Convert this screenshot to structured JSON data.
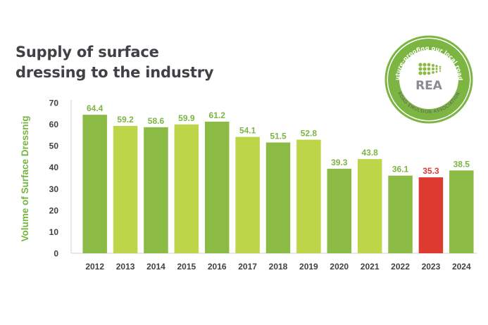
{
  "title_lines": [
    "Supply of surface",
    "dressing to the industry"
  ],
  "logo": {
    "text": "REA",
    "arc_top": "Future-proofing our local roads",
    "arc_bottom": "ROAD EMULSION ASSOCIATION",
    "colors": {
      "ring": "#7db543",
      "fill": "#7db543",
      "text_gray": "#8a8c8f"
    }
  },
  "colors": {
    "dark_green": "#8bbb44",
    "light_green": "#bdd548",
    "red": "#dd3b30",
    "ylabel": "#74b63f",
    "value_green": "#7db543",
    "value_red": "#dd3b30",
    "axis_text": "#404145"
  },
  "chart_data": {
    "type": "bar",
    "title": "Supply of surface dressing to the industry",
    "ylabel": "Volume of Surface Dressnig",
    "xlabel": "",
    "ylim": [
      0,
      70
    ],
    "yticks": [
      0,
      10,
      20,
      30,
      40,
      50,
      60,
      70
    ],
    "grid": false,
    "categories": [
      "2012",
      "2013",
      "2014",
      "2015",
      "2016",
      "2017",
      "2018",
      "2019",
      "2020",
      "2021",
      "2022",
      "2023",
      "2024"
    ],
    "values": [
      64.4,
      59.2,
      58.6,
      59.9,
      61.2,
      54.1,
      51.5,
      52.8,
      39.3,
      43.8,
      36.1,
      35.3,
      38.5
    ],
    "value_labels": [
      "64.4",
      "59.2",
      "58.6",
      "59.9",
      "61.2",
      "54.1",
      "51.5",
      "52.8",
      "39.3",
      "43.8",
      "36.1",
      "35.3",
      "38.5"
    ],
    "bar_colors": [
      "dark",
      "light",
      "dark",
      "light",
      "dark",
      "light",
      "dark",
      "light",
      "dark",
      "light",
      "dark",
      "red",
      "dark"
    ]
  }
}
